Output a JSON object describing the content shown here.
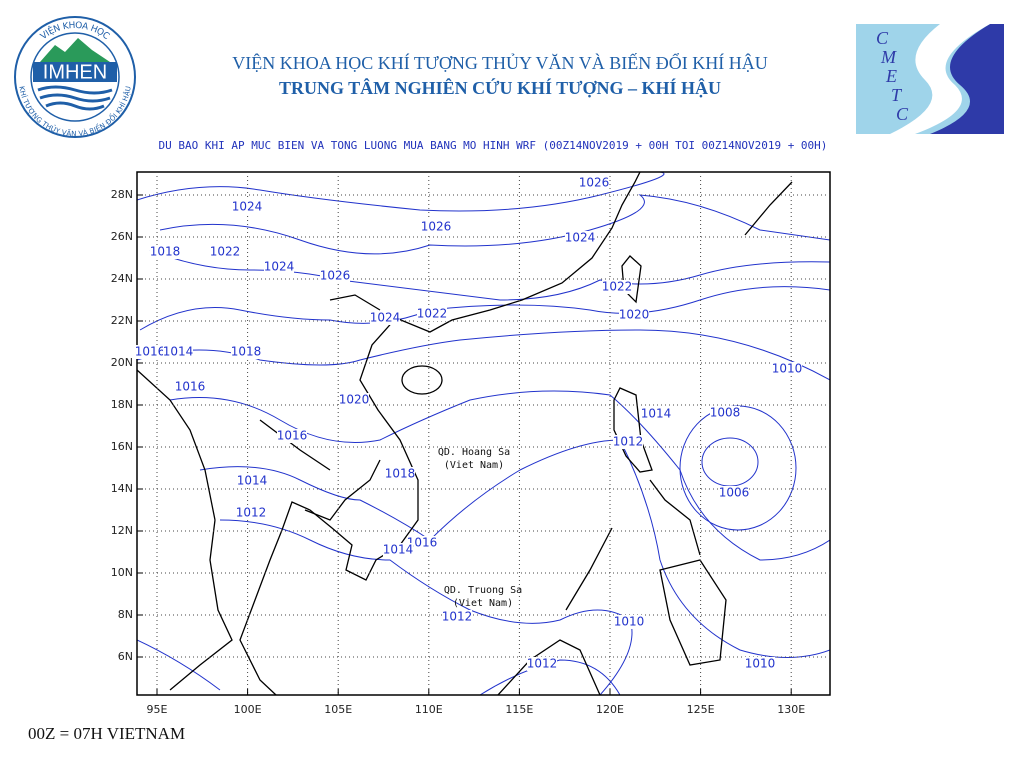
{
  "header": {
    "line1": "VIỆN KHOA HỌC KHÍ TƯỢNG THỦY VĂN VÀ BIẾN ĐỔI KHÍ HẬU",
    "line2": "TRUNG TÂM NGHIÊN CỨU KHÍ TƯỢNG – KHÍ HẬU",
    "logo_left": {
      "name": "IMHEN",
      "ring_top": "VIỆN KHOA HỌC",
      "ring_bottom": "KHÍ TƯỢNG THỦY VĂN VÀ BIẾN ĐỔI KHÍ HẬU"
    },
    "logo_right": {
      "letters": [
        "C",
        "M",
        "E",
        "T",
        "C"
      ]
    }
  },
  "map": {
    "title": "DU BAO KHI AP MUC BIEN VA TONG LUONG MUA BANG MO HINH WRF (00Z14NOV2019 + 00H TOI 00Z14NOV2019 + 00H)",
    "lat_labels": [
      "28N",
      "26N",
      "24N",
      "22N",
      "20N",
      "18N",
      "16N",
      "14N",
      "12N",
      "10N",
      "8N",
      "6N"
    ],
    "lon_labels": [
      "95E",
      "100E",
      "105E",
      "110E",
      "115E",
      "120E",
      "125E",
      "130E"
    ],
    "contour_labels": [
      "1026",
      "1024",
      "1026",
      "1018",
      "1022",
      "1024",
      "1024",
      "1026",
      "1022",
      "1022",
      "1024",
      "1020",
      "1016",
      "1014",
      "1018",
      "1010",
      "1016",
      "1020",
      "1014",
      "1008",
      "1016",
      "1012",
      "1006",
      "1014",
      "1012",
      "1018",
      "1016",
      "1014",
      "1012",
      "1010",
      "1012",
      "1010"
    ],
    "places": [
      {
        "name": "QD. Hoang Sa",
        "note": "(Viet Nam)"
      },
      {
        "name": "QD. Truong Sa",
        "note": "(Viet Nam)"
      }
    ]
  },
  "footer": "00Z = 07H VIETNAM"
}
